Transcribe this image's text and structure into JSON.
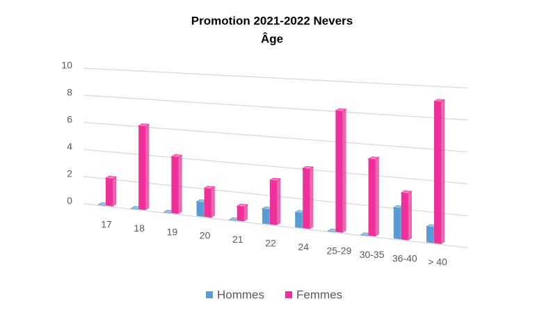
{
  "chart_data": {
    "type": "bar3d",
    "title": "Promotion 2021-2022 Nevers",
    "subtitle": "Âge",
    "categories": [
      "17",
      "18",
      "19",
      "20",
      "21",
      "22",
      "24",
      "25-29",
      "30-35",
      "36-40",
      "> 40"
    ],
    "series": [
      {
        "name": "Hommes",
        "color": "#5b9bd5",
        "values": [
          0,
          0,
          0,
          1,
          0,
          1,
          1,
          0,
          0,
          2,
          1
        ]
      },
      {
        "name": "Femmes",
        "color": "#f0309a",
        "values": [
          2,
          6,
          4,
          2,
          1,
          3,
          4,
          8,
          5,
          3,
          9
        ]
      }
    ],
    "ylim": [
      0,
      10
    ],
    "yticks": [
      0,
      2,
      4,
      6,
      8,
      10
    ],
    "grid": true,
    "legend": "bottom"
  }
}
